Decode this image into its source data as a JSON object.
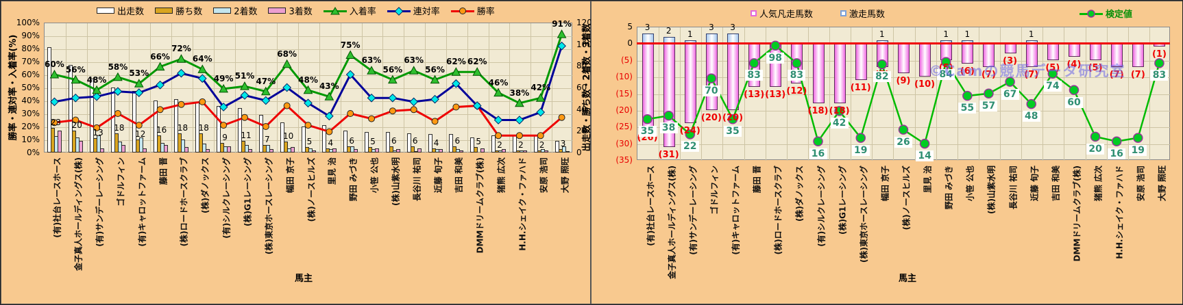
{
  "categories": [
    "(有)社台レースホース",
    "金子真人ホールディングス(株)",
    "(有)サンデーレーシング",
    "ゴドルフィン",
    "(有)キャロットファーム",
    "藤田 晋",
    "(株)ロードホースクラブ",
    "(株)ダノックス",
    "(有)シルクレーシング",
    "(株)G1レーシング",
    "(株)東京ホースレーシング",
    "幅田 京子",
    "(株)ノースヒルズ",
    "里見 治",
    "野田 みづき",
    "小笹 公也",
    "(株)山紫水明",
    "長谷川 祐司",
    "近藤 旬子",
    "吉田 和美",
    "DMMドリームクラブ(株)",
    "猪熊 広次",
    "H.H.シェイク・ファハド",
    "安原 浩司",
    "大野 照旺"
  ],
  "x_axis_title": "馬主",
  "watermark": "©Camの競馬データ研究室",
  "colors": {
    "background": "#f8c98f",
    "plot_bg": "#f1ead3",
    "grid": "#cdc4a4",
    "starts_bar": "#ffffff",
    "wins_bar": "#d9a520",
    "seconds_bar": "#c5e6ee",
    "thirds_bar": "#ec9fd0",
    "place_line": "#009900",
    "quinella_line": "#000099",
    "win_line": "#ee0000",
    "win_marker": "#ff9912",
    "quinella_marker": "#00e8e8",
    "place_marker": "#2fbf2f",
    "flop_bar_edge": "#e468dc",
    "surge_bar_edge": "#9fc4ee",
    "kentei_line": "#00bb00",
    "kentei_marker": "#00cc22",
    "zero_line": "#f00000",
    "negative_text": "#e80000",
    "kentei_text": "#2f8f72"
  },
  "chart_data": [
    {
      "type": "bar+line combo",
      "title": "",
      "xlabel": "馬主",
      "y_left_label": "勝率・連対率・入着率(%)",
      "y_right_label": "出走数・勝ち数・2着数・3着数",
      "y_left_range": [
        0,
        100
      ],
      "y_right_range": [
        0,
        120
      ],
      "y_left_ticks": [
        "100%",
        "90%",
        "80%",
        "70%",
        "60%",
        "50%",
        "40%",
        "30%",
        "20%",
        "10%",
        "0%"
      ],
      "y_right_ticks": [
        "120",
        "100",
        "80",
        "60",
        "40",
        "20",
        "0"
      ],
      "grid": true,
      "legend": [
        "出走数",
        "勝ち数",
        "2着数",
        "3着数",
        "入着率",
        "連対率",
        "勝率"
      ],
      "series": [
        {
          "name": "出走数",
          "type": "bar",
          "axis": "right",
          "values": [
            97,
            81,
            68,
            60,
            57,
            48,
            49,
            46,
            43,
            41,
            35,
            28,
            24,
            25,
            20,
            19,
            19,
            18,
            17,
            17,
            14,
            16,
            16,
            16,
            11
          ]
        },
        {
          "name": "勝ち数",
          "type": "bar",
          "axis": "right",
          "labels_shown": true,
          "values": [
            23,
            20,
            13,
            18,
            12,
            16,
            18,
            18,
            9,
            11,
            7,
            10,
            5,
            4,
            6,
            5,
            6,
            6,
            4,
            6,
            5,
            2,
            2,
            2,
            3
          ]
        },
        {
          "name": "2着数",
          "type": "bar",
          "axis": "right",
          "values": [
            15,
            14,
            16,
            10,
            14,
            9,
            12,
            8,
            6,
            7,
            7,
            4,
            4,
            3,
            6,
            3,
            2,
            1,
            3,
            3,
            0,
            2,
            2,
            3,
            6
          ]
        },
        {
          "name": "3着数",
          "type": "bar",
          "axis": "right",
          "values": [
            20,
            11,
            4,
            7,
            4,
            7,
            5,
            3,
            6,
            3,
            3,
            5,
            2,
            4,
            3,
            4,
            3,
            4,
            3,
            2,
            4,
            3,
            2,
            2,
            1
          ]
        },
        {
          "name": "入着率",
          "type": "line",
          "axis": "left",
          "unit": "%",
          "labels_shown": true,
          "values": [
            60,
            56,
            48,
            58,
            53,
            66,
            72,
            64,
            49,
            51,
            47,
            68,
            48,
            43,
            75,
            63,
            56,
            63,
            56,
            62,
            62,
            46,
            38,
            42,
            91
          ]
        },
        {
          "name": "連対率",
          "type": "line",
          "axis": "left",
          "unit": "%",
          "values": [
            39,
            42,
            43,
            47,
            46,
            52,
            61,
            57,
            35,
            44,
            40,
            50,
            38,
            28,
            60,
            42,
            42,
            39,
            41,
            53,
            36,
            25,
            25,
            31,
            82
          ]
        },
        {
          "name": "勝率",
          "type": "line",
          "axis": "left",
          "unit": "%",
          "values": [
            23,
            25,
            19,
            30,
            21,
            33,
            37,
            39,
            21,
            27,
            20,
            36,
            21,
            16,
            30,
            26,
            32,
            33,
            24,
            35,
            36,
            13,
            13,
            13,
            27
          ]
        }
      ]
    },
    {
      "type": "bar+line combo",
      "title": "",
      "xlabel": "馬主",
      "y_range": [
        -35,
        5
      ],
      "y_ticks": [
        "5",
        "0",
        "(5)",
        "(10)",
        "(15)",
        "(20)",
        "(25)",
        "(30)",
        "(35)"
      ],
      "grid": true,
      "legend": [
        "人気凡走馬数",
        "激走馬数",
        "検定値"
      ],
      "series": [
        {
          "name": "激走馬数",
          "type": "bar",
          "direction": "up",
          "values": [
            3,
            2,
            1,
            3,
            3,
            0,
            0,
            0,
            0,
            0,
            0,
            1,
            0,
            0,
            1,
            1,
            0,
            0,
            1,
            0,
            0,
            0,
            0,
            0,
            0
          ]
        },
        {
          "name": "人気凡走馬数",
          "type": "bar",
          "direction": "down",
          "values": [
            26,
            31,
            24,
            20,
            20,
            13,
            13,
            12,
            18,
            18,
            11,
            7,
            9,
            10,
            5,
            6,
            7,
            3,
            7,
            5,
            4,
            5,
            7,
            7,
            1
          ]
        },
        {
          "name": "検定値",
          "type": "line",
          "hidden_scale": [
            0,
            100
          ],
          "values": [
            35,
            38,
            22,
            70,
            35,
            83,
            98,
            83,
            16,
            42,
            19,
            82,
            26,
            14,
            84,
            55,
            57,
            67,
            48,
            74,
            60,
            20,
            16,
            19,
            83
          ]
        }
      ]
    }
  ]
}
